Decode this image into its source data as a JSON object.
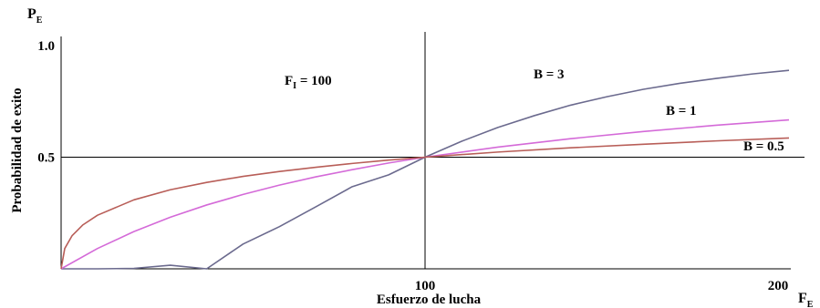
{
  "chart_data": {
    "type": "line",
    "title": "",
    "ylabel": "Probabilidad de exito",
    "ylabel_symbol": "P",
    "ylabel_symbol_sub": "E",
    "xlabel": "Esfuerzo de lucha",
    "xlabel_symbol": "F",
    "xlabel_symbol_sub": "E",
    "xlim": [
      0,
      200
    ],
    "ylim": [
      0,
      1
    ],
    "xticks": [
      {
        "value": 100,
        "label": "100"
      },
      {
        "value": 200,
        "label": "200"
      }
    ],
    "yticks": [
      {
        "value": 1.0,
        "label": "1.0"
      },
      {
        "value": 0.5,
        "label": "0.5"
      }
    ],
    "annotation": {
      "text_main": "F",
      "text_sub": "I",
      "text_rest": " = 100"
    },
    "reference_lines": {
      "x": 100,
      "y": 0.5
    },
    "series": [
      {
        "name": "B = 3",
        "color": "#6b6a8e",
        "x": [
          0,
          10,
          20,
          30,
          40,
          50,
          60,
          70,
          80,
          90,
          100,
          110,
          120,
          130,
          140,
          150,
          160,
          170,
          180,
          190,
          200
        ],
        "values": [
          0,
          0.0,
          0.002,
          0.016,
          0.0,
          0.111,
          0.189,
          0.278,
          0.368,
          0.421,
          0.5,
          0.571,
          0.633,
          0.686,
          0.733,
          0.771,
          0.804,
          0.831,
          0.853,
          0.873,
          0.889
        ]
      },
      {
        "name": "B = 1",
        "color": "#d46ad8",
        "x": [
          0,
          10,
          20,
          30,
          40,
          50,
          60,
          70,
          80,
          90,
          100,
          120,
          140,
          160,
          180,
          200
        ],
        "values": [
          0,
          0.091,
          0.167,
          0.231,
          0.286,
          0.333,
          0.375,
          0.412,
          0.444,
          0.474,
          0.5,
          0.545,
          0.583,
          0.615,
          0.643,
          0.667
        ]
      },
      {
        "name": "B = 0.5",
        "color": "#b85e58",
        "x": [
          0,
          1,
          3,
          6,
          10,
          20,
          30,
          40,
          50,
          60,
          70,
          80,
          90,
          100,
          120,
          140,
          160,
          180,
          200
        ],
        "values": [
          0,
          0.091,
          0.148,
          0.197,
          0.24,
          0.309,
          0.354,
          0.387,
          0.414,
          0.436,
          0.455,
          0.472,
          0.487,
          0.5,
          0.523,
          0.542,
          0.558,
          0.573,
          0.586
        ]
      }
    ]
  }
}
